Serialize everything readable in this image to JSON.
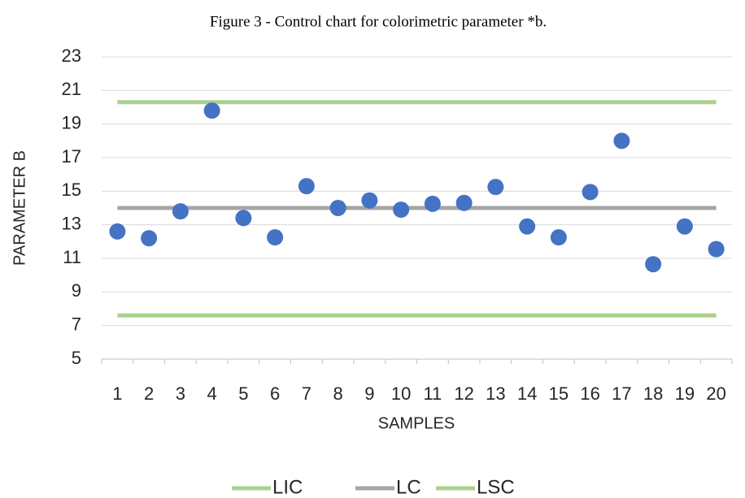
{
  "chart_data": {
    "type": "combo",
    "title": "Figure 3 - Control chart for colorimetric parameter *b.",
    "x_label": "SAMPLES",
    "y_label": "PARAMETER B",
    "categories": [
      "1",
      "2",
      "3",
      "4",
      "5",
      "6",
      "7",
      "8",
      "9",
      "10",
      "11",
      "12",
      "13",
      "14",
      "15",
      "16",
      "17",
      "18",
      "19",
      "20"
    ],
    "ylim": [
      5,
      23
    ],
    "yticks": [
      5,
      7,
      9,
      11,
      13,
      15,
      17,
      19,
      21,
      23
    ],
    "grid": true,
    "legend": "bottom",
    "series": [
      {
        "type": "scatter",
        "color": "#4472c4",
        "values": [
          12.6,
          12.2,
          13.8,
          19.8,
          13.4,
          12.25,
          15.3,
          14.0,
          14.45,
          13.9,
          14.25,
          14.3,
          15.25,
          12.9,
          12.25,
          14.95,
          18.0,
          10.65,
          12.9,
          11.55
        ]
      },
      {
        "type": "line",
        "name": "LIC",
        "color": "#a9d18e",
        "values": [
          7.6,
          7.6,
          7.6,
          7.6,
          7.6,
          7.6,
          7.6,
          7.6,
          7.6,
          7.6,
          7.6,
          7.6,
          7.6,
          7.6,
          7.6,
          7.6,
          7.6,
          7.6,
          7.6,
          7.6
        ]
      },
      {
        "type": "line",
        "name": "LC",
        "color": "#a5a5a5",
        "values": [
          14,
          14,
          14,
          14,
          14,
          14,
          14,
          14,
          14,
          14,
          14,
          14,
          14,
          14,
          14,
          14,
          14,
          14,
          14,
          14
        ]
      },
      {
        "type": "line",
        "name": "LSC",
        "color": "#a9d18e",
        "values": [
          20.3,
          20.3,
          20.3,
          20.3,
          20.3,
          20.3,
          20.3,
          20.3,
          20.3,
          20.3,
          20.3,
          20.3,
          20.3,
          20.3,
          20.3,
          20.3,
          20.3,
          20.3,
          20.3,
          20.3
        ]
      }
    ]
  }
}
